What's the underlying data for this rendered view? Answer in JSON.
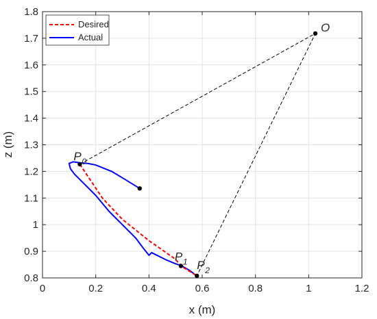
{
  "chart_data": {
    "type": "line",
    "xlabel": "x (m)",
    "ylabel": "z (m)",
    "xlim": [
      0,
      1.2
    ],
    "ylim": [
      0.8,
      1.8
    ],
    "xticks": [
      0,
      0.2,
      0.4,
      0.6,
      0.8,
      1,
      1.2
    ],
    "xtick_labels": [
      "0",
      "0.2",
      "0.4",
      "0.6",
      "0.8",
      "1",
      "1.2"
    ],
    "yticks": [
      0.8,
      0.9,
      1,
      1.1,
      1.2,
      1.3,
      1.4,
      1.5,
      1.6,
      1.7,
      1.8
    ],
    "ytick_labels": [
      "0.8",
      "0.9",
      "1",
      "1.1",
      "1.2",
      "1.3",
      "1.4",
      "1.5",
      "1.6",
      "1.7",
      "1.8"
    ],
    "grid": true,
    "legend_position": "top-left",
    "series": [
      {
        "name": "Desired",
        "color": "#ff0000",
        "style": "dashed",
        "x": [
          0.14,
          0.225,
          0.3,
          0.4,
          0.5,
          0.52,
          0.58
        ],
        "y": [
          1.227,
          1.1,
          1.02,
          0.94,
          0.87,
          0.845,
          0.808
        ]
      },
      {
        "name": "Actual",
        "color": "#0000ff",
        "style": "solid",
        "x": [
          0.365,
          0.31,
          0.26,
          0.2,
          0.17,
          0.145,
          0.115,
          0.1,
          0.105,
          0.12,
          0.16,
          0.2,
          0.25,
          0.3,
          0.35,
          0.38,
          0.4,
          0.41,
          0.43,
          0.46,
          0.5,
          0.52,
          0.55,
          0.57,
          0.58
        ],
        "y": [
          1.136,
          1.17,
          1.2,
          1.224,
          1.23,
          1.232,
          1.236,
          1.23,
          1.21,
          1.19,
          1.15,
          1.11,
          1.05,
          1.0,
          0.95,
          0.91,
          0.885,
          0.895,
          0.885,
          0.87,
          0.853,
          0.847,
          0.83,
          0.815,
          0.808
        ]
      }
    ],
    "reference_lines": [
      {
        "style": "dashed",
        "color": "#000000",
        "x": [
          0.14,
          1.025,
          0.58
        ],
        "y": [
          1.227,
          1.718,
          0.808
        ]
      }
    ],
    "points": [
      {
        "label": "P",
        "subscript": "0",
        "x": 0.14,
        "y": 1.227
      },
      {
        "label": "P",
        "subscript": "1",
        "x": 0.52,
        "y": 0.845
      },
      {
        "label": "P",
        "subscript": "2",
        "x": 0.58,
        "y": 0.808
      },
      {
        "label": "O",
        "subscript": "",
        "x": 1.025,
        "y": 1.718
      },
      {
        "label": "",
        "subscript": "",
        "x": 0.365,
        "y": 1.136
      }
    ]
  }
}
